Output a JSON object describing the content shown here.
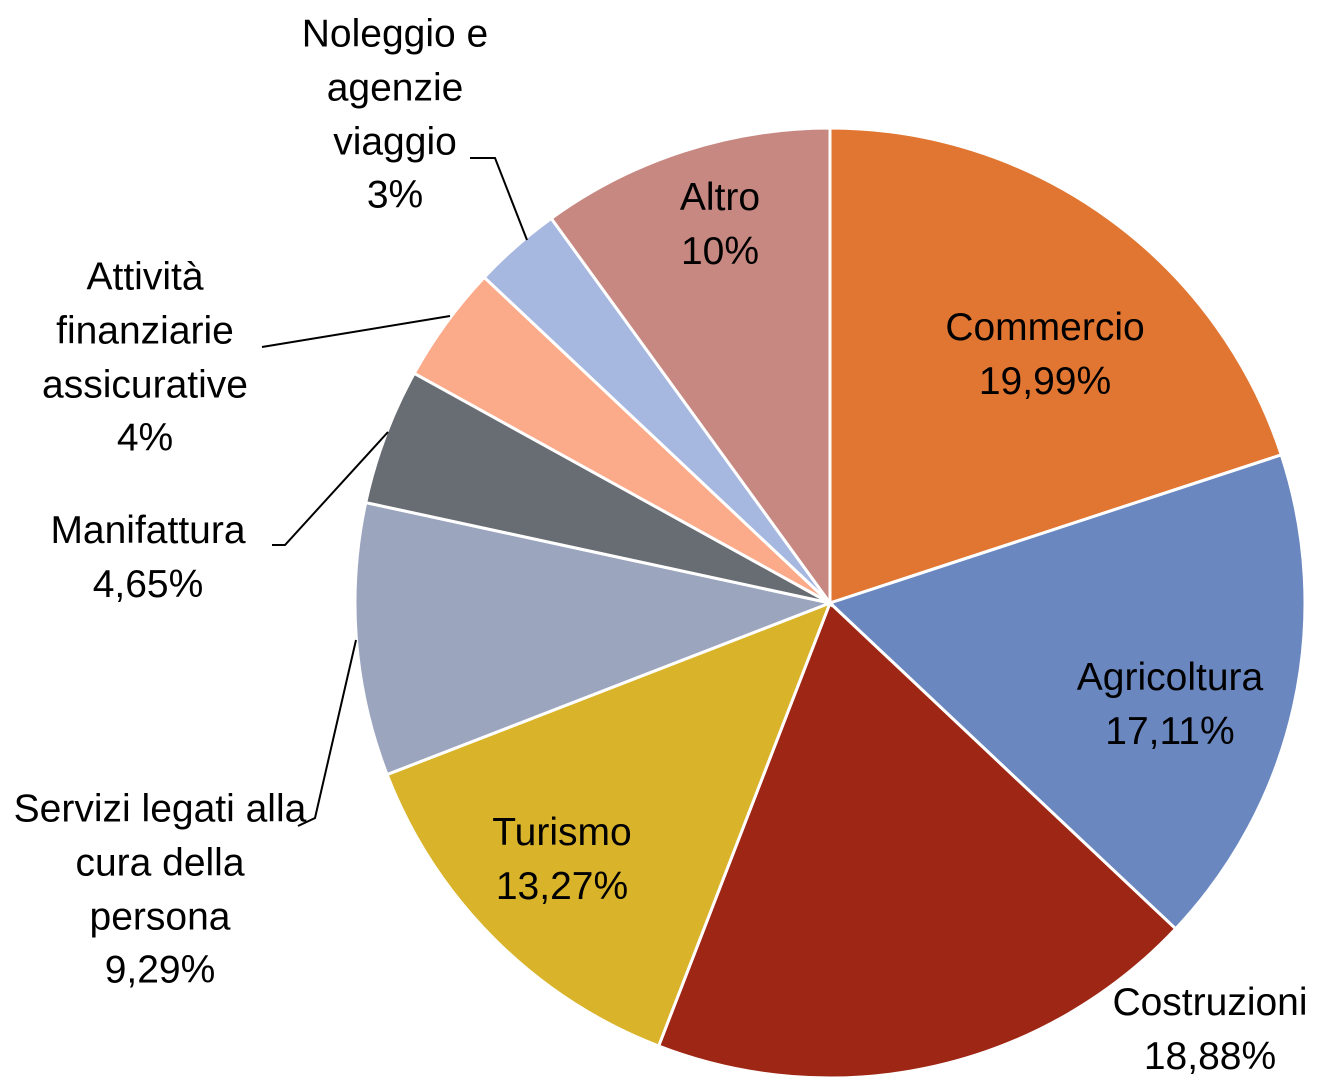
{
  "chart_data": {
    "type": "pie",
    "categories": [
      "Commercio",
      "Agricoltura",
      "Costruzioni",
      "Turismo",
      "Servizi legati alla cura della persona",
      "Manifattura",
      "Attività finanziarie assicurative",
      "Noleggio e agenzie viaggio",
      "Altro"
    ],
    "values": [
      19.99,
      17.11,
      18.88,
      13.27,
      9.29,
      4.65,
      4,
      3,
      10
    ],
    "value_labels": [
      "19,99%",
      "17,11%",
      "18,88%",
      "13,27%",
      "9,29%",
      "4,65%",
      "4%",
      "3%",
      "10%"
    ],
    "colors": [
      "#e07632",
      "#6a87c0",
      "#9e2614",
      "#d9b32a",
      "#9ba5be",
      "#686c73",
      "#fbaa8a",
      "#a6b7e0",
      "#c78882"
    ]
  }
}
